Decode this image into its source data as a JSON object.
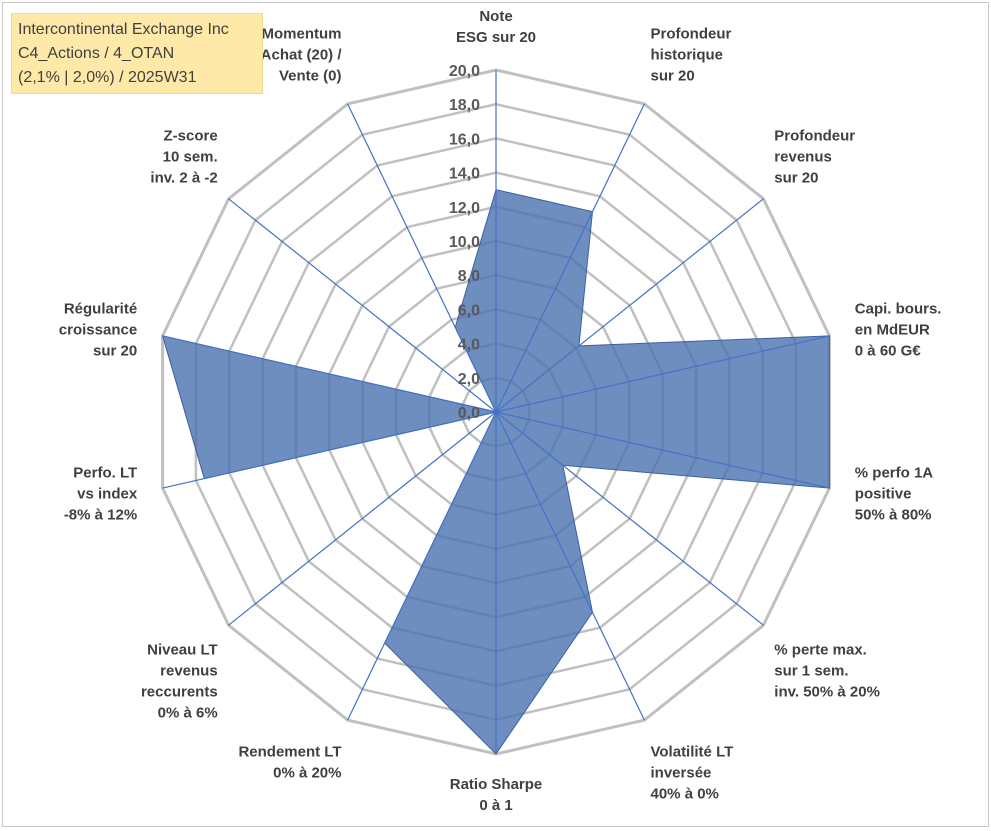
{
  "info": {
    "line1": "Intercontinental Exchange Inc",
    "line2": "C4_Actions / 4_OTAN",
    "line3": "(2,1% | 2,0%) / 2025W31"
  },
  "chart_data": {
    "type": "radar",
    "rmin": 0,
    "rmax": 20,
    "tick_step": 2,
    "tick_labels": [
      "0,0",
      "2,0",
      "4,0",
      "6,0",
      "8,0",
      "10,0",
      "12,0",
      "14,0",
      "16,0",
      "18,0",
      "20,0"
    ],
    "axes": [
      [
        "Note",
        "ESG sur 20"
      ],
      [
        "Profondeur",
        "historique",
        "sur 20"
      ],
      [
        "Profondeur",
        "revenus",
        "sur 20"
      ],
      [
        "Capi. bours.",
        "en MdEUR",
        "0 à 60 G€"
      ],
      [
        "% perfo 1A",
        "positive",
        "50% à 80%"
      ],
      [
        "% perte max.",
        "sur 1 sem.",
        "inv. 50% à 20%"
      ],
      [
        "Volatilité LT",
        "inversée",
        "40% à 0%"
      ],
      [
        "Ratio Sharpe",
        "0 à 1"
      ],
      [
        "Rendement LT",
        "0% à 20%"
      ],
      [
        "Niveau LT",
        "revenus",
        "reccurents",
        "0% à 6%"
      ],
      [
        "Perfo. LT",
        "vs index",
        "-8% à 12%"
      ],
      [
        "Régularité",
        "croissance",
        "sur 20"
      ],
      [
        "Z-score",
        "10 sem.",
        "inv. 2 à -2"
      ],
      [
        "Momentum",
        "Achat (20) /",
        "Vente (0)"
      ]
    ],
    "values": [
      13.0,
      13.0,
      6.2,
      20.0,
      20.0,
      5.0,
      13.0,
      20.0,
      15.0,
      0.0,
      17.5,
      20.0,
      0.0,
      5.5
    ],
    "grid": true,
    "colors": {
      "fill": "#4a72b0",
      "fill_opacity": 0.8,
      "grid": "#c0c0c0",
      "spoke": "#4472c4"
    }
  }
}
